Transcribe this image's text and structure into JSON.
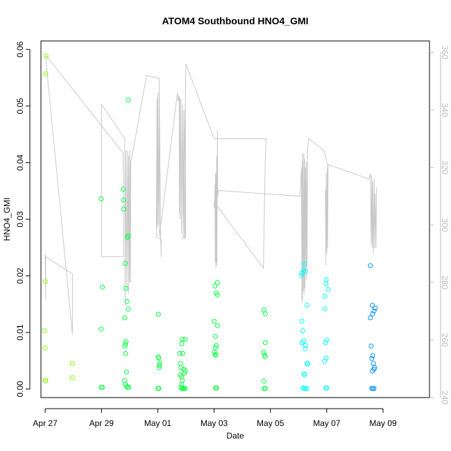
{
  "chart_data": {
    "type": "scatter",
    "title": "ATOM4 Southbound HNO4_GMI",
    "xlabel": "Date",
    "ylabel": "HNO4_GMI",
    "x_unit": "days",
    "xlim": [
      -0.15,
      13.65
    ],
    "ylim": [
      -0.0015,
      0.0615
    ],
    "x_ticks": [
      {
        "x": 0,
        "label": "Apr 27"
      },
      {
        "x": 2,
        "label": "Apr 29"
      },
      {
        "x": 4,
        "label": "May 01"
      },
      {
        "x": 6,
        "label": "May 03"
      },
      {
        "x": 8,
        "label": "May 05"
      },
      {
        "x": 10,
        "label": "May 07"
      },
      {
        "x": 12,
        "label": "May 09"
      }
    ],
    "y_ticks": [
      0.0,
      0.01,
      0.02,
      0.03,
      0.04,
      0.05,
      0.06
    ],
    "y_tick_labels": [
      "0.00",
      "0.01",
      "0.02",
      "0.03",
      "0.04",
      "0.05",
      "0.06"
    ],
    "y2lim": [
      240,
      364
    ],
    "y2_ticks": [
      240,
      260,
      280,
      300,
      320,
      340,
      360
    ],
    "y2_tick_labels": [
      "240",
      "260",
      "280",
      "300",
      "320",
      "340",
      "360"
    ],
    "point_colors": {
      "early": "#80ff00",
      "mid": "#00ff40",
      "late": "#00ffff",
      "last": "#0090ff"
    },
    "line_color": "#c8c8c8",
    "points": [
      [
        0.03,
        0.0589
      ],
      [
        0.02,
        0.0557
      ],
      [
        0.0,
        0.019
      ],
      [
        -0.02,
        0.0103
      ],
      [
        0.0,
        0.0073
      ],
      [
        0.0,
        0.0015
      ],
      [
        0.02,
        0.0015
      ],
      [
        0.97,
        0.0045
      ],
      [
        0.97,
        0.002
      ],
      [
        1.99,
        0.0336
      ],
      [
        2.03,
        0.018
      ],
      [
        1.99,
        0.0106
      ],
      [
        1.99,
        0.0003
      ],
      [
        2.03,
        0.0003
      ],
      [
        2.77,
        0.0353
      ],
      [
        2.78,
        0.0334
      ],
      [
        2.79,
        0.0318
      ],
      [
        2.94,
        0.0271
      ],
      [
        2.92,
        0.0268
      ],
      [
        2.85,
        0.0222
      ],
      [
        2.87,
        0.0178
      ],
      [
        2.91,
        0.0155
      ],
      [
        2.95,
        0.0141
      ],
      [
        2.83,
        0.0126
      ],
      [
        2.87,
        0.0084
      ],
      [
        2.85,
        0.008
      ],
      [
        2.83,
        0.0076
      ],
      [
        2.86,
        0.0063
      ],
      [
        2.89,
        0.003
      ],
      [
        2.82,
        0.0015
      ],
      [
        2.85,
        0.0008
      ],
      [
        2.89,
        0.0005
      ],
      [
        2.93,
        0.0003
      ],
      [
        2.97,
        0.0003
      ],
      [
        2.95,
        0.0511
      ],
      [
        4.02,
        0.0132
      ],
      [
        4.01,
        0.0057
      ],
      [
        4.04,
        0.0055
      ],
      [
        4.07,
        0.0046
      ],
      [
        4.06,
        0.0042
      ],
      [
        4.05,
        0.0038
      ],
      [
        4.01,
        0.0001
      ],
      [
        4.04,
        0.0001
      ],
      [
        4.87,
        0.0088
      ],
      [
        4.97,
        0.0088
      ],
      [
        4.85,
        0.008
      ],
      [
        4.78,
        0.0063
      ],
      [
        4.89,
        0.0063
      ],
      [
        4.8,
        0.0045
      ],
      [
        4.82,
        0.0038
      ],
      [
        4.92,
        0.0035
      ],
      [
        4.97,
        0.0032
      ],
      [
        4.94,
        0.0028
      ],
      [
        4.8,
        0.0025
      ],
      [
        4.84,
        0.0022
      ],
      [
        4.87,
        0.0015
      ],
      [
        4.85,
        0.0008
      ],
      [
        4.82,
        0.0003
      ],
      [
        4.86,
        0.0001
      ],
      [
        4.9,
        0.0001
      ],
      [
        4.93,
        0.0001
      ],
      [
        4.97,
        0.0001
      ],
      [
        6.12,
        0.0188
      ],
      [
        6.03,
        0.0182
      ],
      [
        6.08,
        0.017
      ],
      [
        6.12,
        0.0166
      ],
      [
        6.0,
        0.012
      ],
      [
        6.12,
        0.0112
      ],
      [
        6.05,
        0.0093
      ],
      [
        6.08,
        0.0077
      ],
      [
        6.05,
        0.0073
      ],
      [
        6.01,
        0.0065
      ],
      [
        6.03,
        0.0061
      ],
      [
        6.07,
        0.006
      ],
      [
        6.05,
        0.0002
      ],
      [
        6.09,
        0.0002
      ],
      [
        7.77,
        0.014
      ],
      [
        7.82,
        0.0133
      ],
      [
        7.82,
        0.0082
      ],
      [
        7.76,
        0.0065
      ],
      [
        7.79,
        0.006
      ],
      [
        7.82,
        0.0057
      ],
      [
        7.77,
        0.0014
      ],
      [
        7.78,
        0.0001
      ],
      [
        7.82,
        0.0001
      ],
      [
        9.2,
        0.0221
      ],
      [
        9.18,
        0.021
      ],
      [
        9.25,
        0.0208
      ],
      [
        9.12,
        0.0205
      ],
      [
        9.1,
        0.0201
      ],
      [
        9.3,
        0.0148
      ],
      [
        9.12,
        0.012
      ],
      [
        9.15,
        0.0103
      ],
      [
        9.18,
        0.0085
      ],
      [
        9.12,
        0.0082
      ],
      [
        9.25,
        0.0077
      ],
      [
        9.23,
        0.0071
      ],
      [
        9.3,
        0.0046
      ],
      [
        9.32,
        0.0044
      ],
      [
        9.2,
        0.0027
      ],
      [
        9.22,
        0.0025
      ],
      [
        9.15,
        0.0002
      ],
      [
        9.2,
        0.0001
      ],
      [
        9.25,
        0.0001
      ],
      [
        9.3,
        0.0001
      ],
      [
        9.98,
        0.0193
      ],
      [
        9.97,
        0.0186
      ],
      [
        10.05,
        0.0176
      ],
      [
        9.93,
        0.0164
      ],
      [
        9.93,
        0.0142
      ],
      [
        10.0,
        0.0087
      ],
      [
        9.96,
        0.0082
      ],
      [
        9.98,
        0.0055
      ],
      [
        9.92,
        0.0049
      ],
      [
        9.97,
        0.0002
      ],
      [
        10.0,
        0.0002
      ],
      [
        11.55,
        0.0218
      ],
      [
        11.62,
        0.0148
      ],
      [
        11.72,
        0.0143
      ],
      [
        11.68,
        0.0138
      ],
      [
        11.63,
        0.0133
      ],
      [
        11.55,
        0.0126
      ],
      [
        11.58,
        0.0076
      ],
      [
        11.63,
        0.0059
      ],
      [
        11.6,
        0.0054
      ],
      [
        11.66,
        0.0045
      ],
      [
        11.7,
        0.0038
      ],
      [
        11.68,
        0.0035
      ],
      [
        11.62,
        0.0032
      ],
      [
        11.6,
        0.0001
      ],
      [
        11.64,
        0.0001
      ],
      [
        11.68,
        0.0001
      ]
    ],
    "altitude_line": [
      [
        0.0,
        290
      ],
      [
        0.02,
        274
      ],
      [
        0.02,
        289
      ],
      [
        0.97,
        283
      ],
      [
        0.97,
        262
      ],
      [
        0.03,
        357
      ],
      [
        0.03,
        359
      ],
      [
        2.77,
        325
      ],
      [
        2.77,
        319
      ],
      [
        2.78,
        319
      ],
      [
        2.78,
        289
      ],
      [
        2.0,
        289
      ],
      [
        2.0,
        342
      ],
      [
        2.83,
        330
      ],
      [
        2.84,
        272
      ],
      [
        2.87,
        326
      ],
      [
        2.9,
        278
      ],
      [
        2.93,
        326
      ],
      [
        2.96,
        276
      ],
      [
        2.97,
        324
      ],
      [
        3.0,
        280
      ],
      [
        3.01,
        326
      ],
      [
        3.03,
        280
      ],
      [
        3.04,
        322
      ],
      [
        3.05,
        322
      ],
      [
        3.6,
        352
      ],
      [
        4.05,
        351
      ],
      [
        4.1,
        296
      ],
      [
        4.12,
        289
      ],
      [
        4.12,
        295
      ],
      [
        3.95,
        296
      ],
      [
        3.97,
        344
      ],
      [
        3.98,
        299
      ],
      [
        4.0,
        346
      ],
      [
        4.02,
        300
      ],
      [
        4.05,
        346
      ],
      [
        4.06,
        296
      ],
      [
        4.08,
        298
      ],
      [
        4.7,
        346
      ],
      [
        4.72,
        343
      ],
      [
        4.76,
        345
      ],
      [
        4.77,
        304
      ],
      [
        4.78,
        344
      ],
      [
        4.79,
        302
      ],
      [
        4.82,
        344
      ],
      [
        4.84,
        297
      ],
      [
        4.88,
        342
      ],
      [
        4.9,
        298
      ],
      [
        4.93,
        340
      ],
      [
        4.95,
        295
      ],
      [
        4.97,
        296
      ],
      [
        4.98,
        344
      ],
      [
        4.99,
        296
      ],
      [
        4.9,
        296
      ],
      [
        4.9,
        295
      ],
      [
        5.0,
        356
      ],
      [
        6.0,
        330
      ],
      [
        7.85,
        330
      ],
      [
        7.82,
        324
      ],
      [
        7.75,
        285
      ],
      [
        6.0,
        308
      ],
      [
        6.0,
        306
      ],
      [
        6.02,
        306
      ],
      [
        6.03,
        314
      ],
      [
        6.04,
        287
      ],
      [
        6.05,
        318
      ],
      [
        6.06,
        285
      ],
      [
        6.07,
        318
      ],
      [
        6.08,
        287
      ],
      [
        6.09,
        324
      ],
      [
        6.1,
        286
      ],
      [
        6.12,
        333
      ],
      [
        6.13,
        310
      ],
      [
        6.15,
        312
      ],
      [
        9.05,
        310
      ],
      [
        9.1,
        320
      ],
      [
        9.12,
        273
      ],
      [
        9.13,
        322
      ],
      [
        9.14,
        274
      ],
      [
        9.15,
        325
      ],
      [
        9.17,
        277
      ],
      [
        9.19,
        325
      ],
      [
        9.2,
        276
      ],
      [
        9.22,
        323
      ],
      [
        9.23,
        278
      ],
      [
        9.25,
        320
      ],
      [
        9.27,
        281
      ],
      [
        9.28,
        322
      ],
      [
        9.3,
        285
      ],
      [
        9.32,
        325
      ],
      [
        9.35,
        330
      ],
      [
        9.9,
        326
      ],
      [
        10.05,
        320
      ],
      [
        10.0,
        310
      ],
      [
        9.95,
        312
      ],
      [
        9.97,
        286
      ],
      [
        9.98,
        318
      ],
      [
        10.0,
        290
      ],
      [
        10.02,
        320
      ],
      [
        10.03,
        292
      ],
      [
        10.05,
        321
      ],
      [
        11.5,
        316
      ],
      [
        11.55,
        318
      ],
      [
        11.58,
        293
      ],
      [
        11.6,
        317
      ],
      [
        11.62,
        292
      ],
      [
        11.63,
        315
      ],
      [
        11.66,
        290
      ],
      [
        11.68,
        316
      ],
      [
        11.7,
        292
      ],
      [
        11.72,
        311
      ],
      [
        11.75,
        292
      ],
      [
        11.77,
        313
      ]
    ]
  }
}
